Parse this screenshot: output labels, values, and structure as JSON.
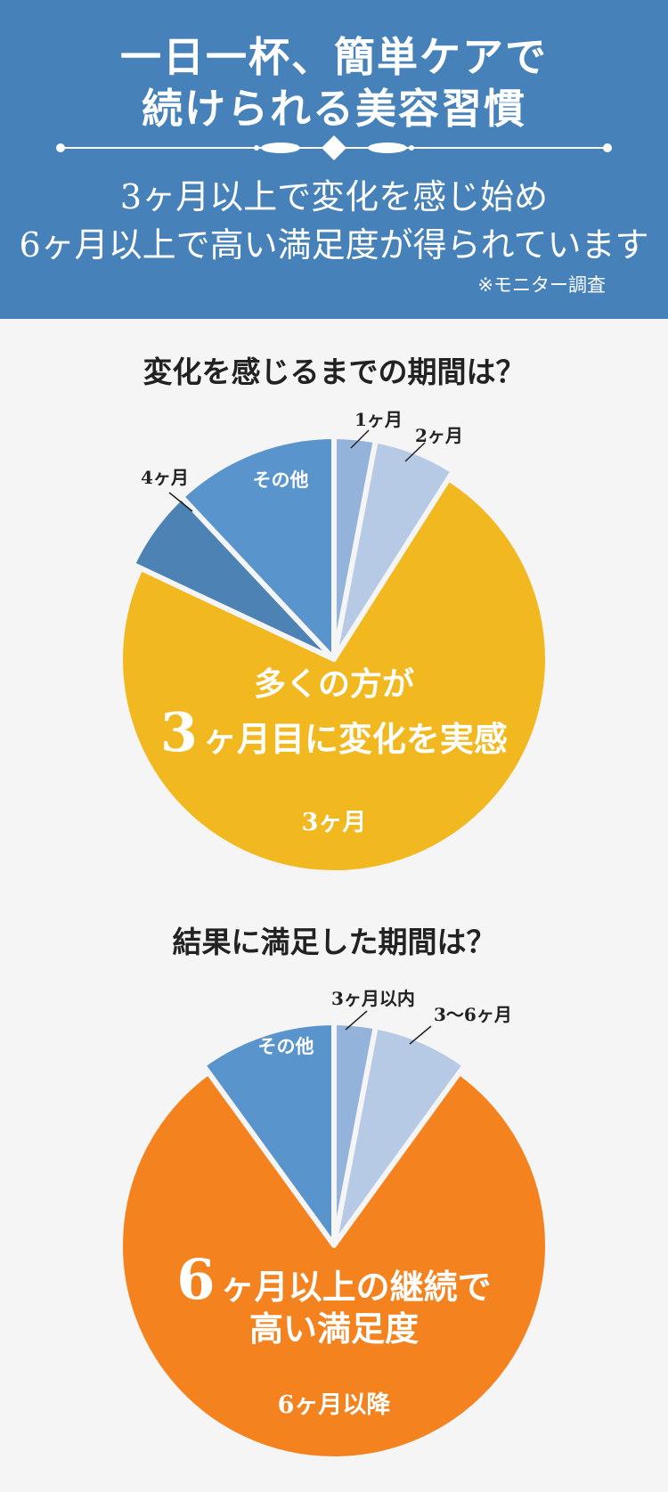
{
  "header": {
    "title_line1": "一日一杯、簡単ケアで",
    "title_line2": "続けられる美容習慣",
    "sub_line1": "3ヶ月以上で変化を感じ始め",
    "sub_line2": "6ヶ月以上で高い満足度が得られています",
    "note": "※モニター調査"
  },
  "colors": {
    "header_bg": "#4682b9",
    "yellow": "#f2b81f",
    "orange": "#f3821f",
    "blue_light": "#b6cae6",
    "blue_mid": "#93b3da",
    "blue": "#5a94cc",
    "blue_dark": "#4d82b5"
  },
  "chart_data": [
    {
      "type": "pie",
      "title": "変化を感じるまでの期間は？",
      "slices": [
        {
          "label": "1ヶ月",
          "value": 3,
          "color": "#93b3da",
          "label_type": "outside"
        },
        {
          "label": "2ヶ月",
          "value": 6,
          "color": "#b6cae6",
          "label_type": "outside"
        },
        {
          "label": "3ヶ月",
          "value": 73,
          "color": "#f2b81f",
          "label_type": "inside"
        },
        {
          "label": "4ヶ月",
          "value": 6,
          "color": "#4d82b5",
          "label_type": "outside"
        },
        {
          "label": "その他",
          "value": 12,
          "color": "#5a94cc",
          "label_type": "inside"
        }
      ],
      "callout_line1": "多くの方が",
      "callout_num": "3",
      "callout_line2": "ヶ月目に変化を実感"
    },
    {
      "type": "pie",
      "title": "結果に満足した期間は？",
      "slices": [
        {
          "label": "3ヶ月以内",
          "value": 3,
          "color": "#93b3da",
          "label_type": "outside"
        },
        {
          "label": "3〜6ヶ月",
          "value": 7,
          "color": "#b6cae6",
          "label_type": "outside"
        },
        {
          "label": "6ヶ月以降",
          "value": 80,
          "color": "#f3821f",
          "label_type": "inside"
        },
        {
          "label": "その他",
          "value": 10,
          "color": "#5a94cc",
          "label_type": "inside"
        }
      ],
      "callout_num": "6",
      "callout_line1": "ヶ月以上の継続で",
      "callout_line2": "高い満足度"
    }
  ]
}
